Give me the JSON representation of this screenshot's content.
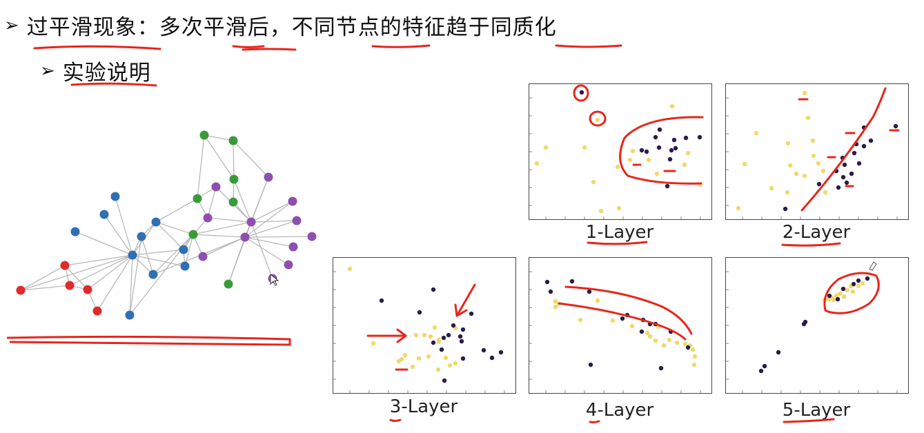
{
  "heading": {
    "arrow": "➢",
    "text": "过平滑现象：多次平滑后，不同节点的特征趋于同质化"
  },
  "subheading": {
    "arrow": "➢",
    "text": "实验说明"
  },
  "panels": [
    {
      "label": "1-Layer"
    },
    {
      "label": "2-Layer"
    },
    {
      "label": "3-Layer"
    },
    {
      "label": "4-Layer"
    },
    {
      "label": "5-Layer"
    }
  ],
  "colors": {
    "annotation": "#e8251b",
    "dark_point": "#2b1a4a",
    "light_point": "#efd96b",
    "node_blue": "#2f6fb3",
    "node_green": "#3a9a3a",
    "node_purple": "#8e4fb0",
    "node_red": "#e02b2b",
    "edge": "#b8b8b8"
  }
}
